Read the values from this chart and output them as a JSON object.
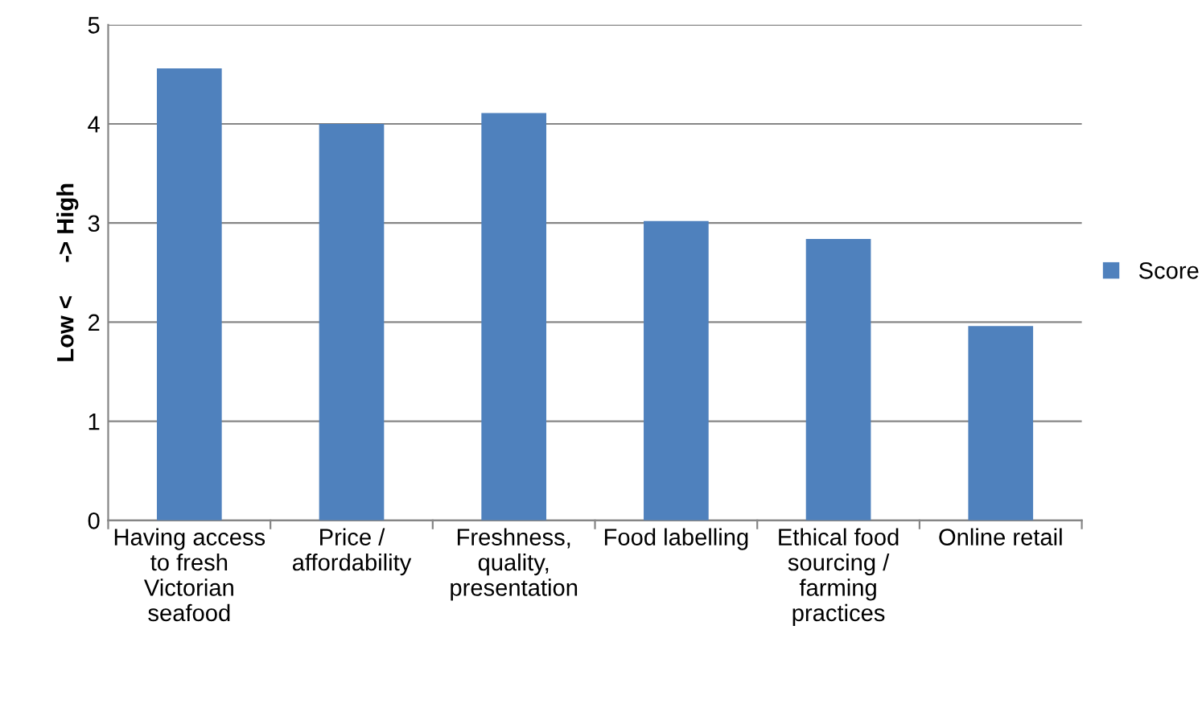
{
  "chart_data": {
    "type": "bar",
    "ylabel": "Low <     -> High",
    "categories": [
      "Having access to fresh Victorian seafood",
      "Price / affordability",
      "Freshness, quality, presentation",
      "Food labelling",
      "Ethical food sourcing / farming practices",
      "Online retail"
    ],
    "series": [
      {
        "name": "Score",
        "color": "#4f81bd",
        "values": [
          4.56,
          4.0,
          4.11,
          3.02,
          2.84,
          1.96
        ]
      }
    ],
    "ylim": [
      0,
      5
    ],
    "yticks": [
      0,
      1,
      2,
      3,
      4,
      5
    ],
    "grid": "y",
    "legend": "right"
  }
}
